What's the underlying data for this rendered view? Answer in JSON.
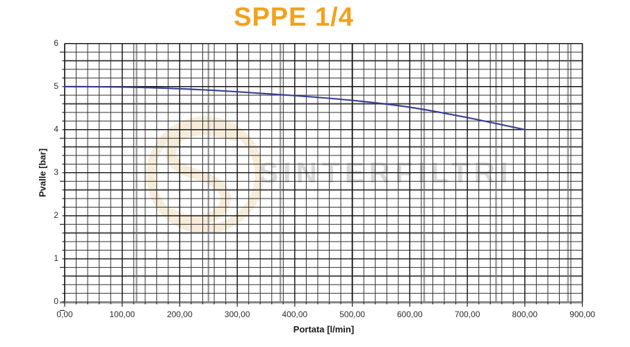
{
  "title": "SPPE 1/4",
  "watermark": {
    "text": "SINTERFILTRI"
  },
  "chart_data": {
    "type": "line",
    "title": "SPPE 1/4",
    "xlabel": "Portata [l/min]",
    "ylabel": "Pvalle [bar]",
    "xlim": [
      0,
      900
    ],
    "ylim": [
      0,
      6
    ],
    "x_major_step": 100,
    "y_major_step": 1,
    "x_tick_labels": [
      "0,00",
      "100,00",
      "200,00",
      "300,00",
      "400,00",
      "500,00",
      "600,00",
      "700,00",
      "800,00",
      "900,00"
    ],
    "y_tick_labels": [
      "0",
      "1",
      "2",
      "3",
      "4",
      "5",
      "6"
    ],
    "grid": {
      "minor_x_step": 20,
      "minor_y_step": 0.2,
      "gray_x_values": [
        125,
        250,
        375,
        500,
        625,
        750,
        875
      ],
      "gray_y_values": [
        0.6,
        1.6,
        2.6,
        3.6,
        4.6,
        5.6
      ]
    },
    "legend": false,
    "series": [
      {
        "name": "SPPE 1/4",
        "x": [
          0,
          100,
          200,
          300,
          400,
          500,
          600,
          700,
          800
        ],
        "y": [
          5.0,
          4.99,
          4.95,
          4.88,
          4.79,
          4.68,
          4.52,
          4.28,
          4.0
        ]
      }
    ]
  },
  "colors": {
    "title": "#F0A21E",
    "curve": "#333A8C",
    "grid_minor": "#2e2e2e",
    "grid_major_black": "#111111",
    "grid_gray": "#9B9B9B",
    "axis_black": "#1a1a1a",
    "axis_bottom_gray": "#8C8C8C",
    "tick": "#222222",
    "watermark_text": "#D9D9D9",
    "watermark_logo": "#F6ECD9"
  }
}
